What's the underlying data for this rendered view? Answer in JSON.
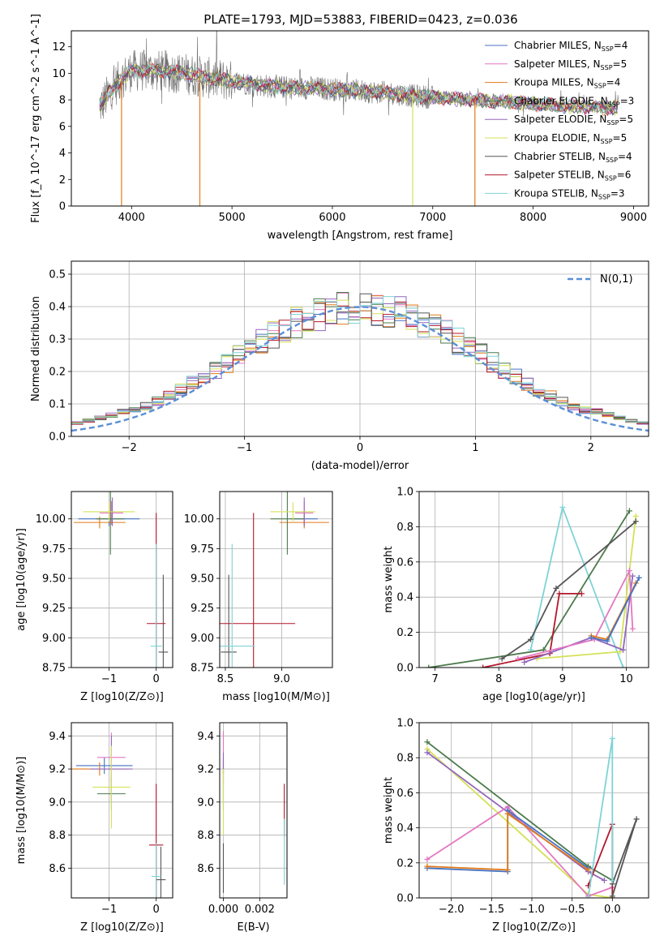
{
  "figure": {
    "title": "PLATE=1793, MJD=53883, FIBERID=0423, z=0.036"
  },
  "series_styles": [
    {
      "name": "Chabrier MILES",
      "nssp": "4",
      "color": "#4472c4"
    },
    {
      "name": "Salpeter MILES",
      "nssp": "5",
      "color": "#e377c2"
    },
    {
      "name": "Kroupa MILES",
      "nssp": "4",
      "color": "#e07b1a"
    },
    {
      "name": "Chabrier ELODIE",
      "nssp": "3",
      "color": "#4c7a4c"
    },
    {
      "name": "Salpeter ELODIE",
      "nssp": "5",
      "color": "#9467bd"
    },
    {
      "name": "Kroupa ELODIE",
      "nssp": "5",
      "color": "#d4e157"
    },
    {
      "name": "Chabrier STELIB",
      "nssp": "4",
      "color": "#555555"
    },
    {
      "name": "Salpeter STELIB",
      "nssp": "6",
      "color": "#b2182b"
    },
    {
      "name": "Kroupa STELIB",
      "nssp": "3",
      "color": "#7fd3d6"
    }
  ],
  "chart_data": [
    {
      "id": "spectrum",
      "type": "line",
      "title": "PLATE=1793, MJD=53883, FIBERID=0423, z=0.036",
      "xlabel": "wavelength [Angstrom, rest frame]",
      "ylabel": "Flux [f_λ 10^-17 erg cm^-2 s^-1 A^-1]",
      "xlim": [
        3400,
        9150
      ],
      "ylim": [
        0,
        13.2
      ],
      "xticks": [
        4000,
        5000,
        6000,
        7000,
        8000,
        9000
      ],
      "yticks": [
        0,
        2,
        4,
        6,
        8,
        10,
        12
      ],
      "grid": false,
      "legend": "top-right",
      "legend_entries": [
        "Chabrier MILES, N_SSP=4",
        "Salpeter MILES, N_SSP=5",
        "Kroupa MILES, N_SSP=4",
        "Chabrier ELODIE, N_SSP=3",
        "Salpeter ELODIE, N_SSP=5",
        "Kroupa ELODIE, N_SSP=5",
        "Chabrier STELIB, N_SSP=4",
        "Salpeter STELIB, N_SSP=6",
        "Kroupa STELIB, N_SSP=3"
      ],
      "continuum": {
        "x": [
          3700,
          3800,
          3900,
          4000,
          4200,
          4400,
          4600,
          4800,
          5000,
          5200,
          5400,
          5600,
          5800,
          6000,
          6200,
          6400,
          6600,
          6800,
          7000,
          7200,
          7400,
          7600,
          7800,
          8000,
          8200,
          8400,
          8600,
          8800
        ],
        "y": [
          7.6,
          8.8,
          9.6,
          10.2,
          10.2,
          10.1,
          9.9,
          9.6,
          9.4,
          9.2,
          9.0,
          8.9,
          8.9,
          8.8,
          8.7,
          8.6,
          8.5,
          8.3,
          8.2,
          8.1,
          8.0,
          7.9,
          7.85,
          7.7,
          7.6,
          7.5,
          7.45,
          7.4
        ]
      },
      "noisy_range": [
        3680,
        8850
      ],
      "dips": [
        {
          "x": 3900,
          "y": 0,
          "color": "#e07b1a"
        },
        {
          "x": 4680,
          "y": 0,
          "color": "#e07b1a"
        },
        {
          "x": 6800,
          "y": 0,
          "color": "#d4e157"
        },
        {
          "x": 7420,
          "y": 0,
          "color": "#e07b1a"
        }
      ]
    },
    {
      "id": "residuals",
      "type": "histogram",
      "xlabel": "(data-model)/error",
      "ylabel": "Normed distribution",
      "xlim": [
        -2.5,
        2.5
      ],
      "ylim": [
        0,
        0.54
      ],
      "xticks": [
        -2,
        -1,
        0,
        1,
        2
      ],
      "yticks": [
        0.0,
        0.1,
        0.2,
        0.3,
        0.4,
        0.5
      ],
      "grid": true,
      "legend": "top-right",
      "reference_curve": {
        "name": "N(0,1)",
        "color": "#5b8fd6",
        "style": "dashed"
      },
      "bin_width": 0.1
    },
    {
      "id": "age_vs_Z",
      "type": "scatter",
      "xlabel": "Z [log10(Z/Z⊙)]",
      "ylabel": "age  [log10(age/yr)]",
      "xlim": [
        -1.8,
        0.35
      ],
      "ylim": [
        8.75,
        10.23
      ],
      "xticks": [
        -1,
        0
      ],
      "yticks": [
        8.75,
        9.0,
        9.25,
        9.5,
        9.75,
        10.0
      ],
      "grid": true,
      "points": [
        {
          "s": 0,
          "x": -1.0,
          "y": 10.0,
          "xerr": 0.65,
          "yerr": 0.06
        },
        {
          "s": 1,
          "x": -0.95,
          "y": 10.05,
          "xerr": 0.25,
          "yerr": 0.1
        },
        {
          "s": 2,
          "x": -1.2,
          "y": 9.97,
          "xerr": 0.55,
          "yerr": 0.05
        },
        {
          "s": 3,
          "x": -0.97,
          "y": 10.0,
          "xerr": 0.3,
          "yerr": 0.3
        },
        {
          "s": 4,
          "x": -0.93,
          "y": 10.06,
          "xerr": 0.05,
          "yerr": 0.12
        },
        {
          "s": 5,
          "x": -1.0,
          "y": 10.06,
          "xerr": 0.55,
          "yerr": 0.08
        },
        {
          "s": 6,
          "x": 0.15,
          "y": 8.88,
          "xerr": 0.1,
          "yerr": 0.65
        },
        {
          "s": 7,
          "x": 0.0,
          "y": 9.12,
          "xerr": 0.2,
          "yerr": 0.93
        },
        {
          "s": 8,
          "x": 0.0,
          "y": 8.93,
          "xerr": 0.12,
          "yerr": 0.86
        }
      ]
    },
    {
      "id": "age_vs_mass",
      "type": "scatter",
      "xlabel": "mass [log10(M/M⊙)]",
      "ylabel": "",
      "xlim": [
        8.45,
        9.45
      ],
      "ylim": [
        8.75,
        10.23
      ],
      "xticks": [
        8.5,
        9.0
      ],
      "yticks": [
        8.75,
        9.0,
        9.25,
        9.5,
        9.75,
        10.0
      ],
      "grid": true,
      "points": [
        {
          "s": 0,
          "x": 9.2,
          "y": 10.0,
          "xerr": 0.12,
          "yerr": 0.06
        },
        {
          "s": 1,
          "x": 9.2,
          "y": 10.05,
          "xerr": 0.08,
          "yerr": 0.1
        },
        {
          "s": 2,
          "x": 9.2,
          "y": 9.97,
          "xerr": 0.22,
          "yerr": 0.05
        },
        {
          "s": 3,
          "x": 9.05,
          "y": 10.0,
          "xerr": 0.15,
          "yerr": 0.3
        },
        {
          "s": 4,
          "x": 9.2,
          "y": 10.06,
          "xerr": 0.02,
          "yerr": 0.12
        },
        {
          "s": 5,
          "x": 9.1,
          "y": 10.06,
          "xerr": 0.2,
          "yerr": 0.08
        },
        {
          "s": 6,
          "x": 8.53,
          "y": 8.88,
          "xerr": 0.07,
          "yerr": 0.65
        },
        {
          "s": 7,
          "x": 8.75,
          "y": 9.12,
          "xerr": 0.37,
          "yerr": 0.93
        },
        {
          "s": 8,
          "x": 8.56,
          "y": 8.93,
          "xerr": 0.2,
          "yerr": 0.86
        }
      ]
    },
    {
      "id": "weight_vs_age",
      "type": "line",
      "xlabel": "age  [log10(age/yr)]",
      "ylabel": "mass weight",
      "xlim": [
        6.75,
        10.35
      ],
      "ylim": [
        0,
        1.0
      ],
      "xticks": [
        7,
        8,
        9,
        10
      ],
      "yticks": [
        0.0,
        0.2,
        0.4,
        0.6,
        0.8,
        1.0
      ],
      "grid": true,
      "series": [
        {
          "s": 8,
          "x": [
            8.5,
            9.0,
            9.95
          ],
          "y": [
            0.1,
            0.91,
            0.0
          ]
        },
        {
          "s": 3,
          "x": [
            6.9,
            8.7,
            10.05
          ],
          "y": [
            0.0,
            0.1,
            0.89
          ]
        },
        {
          "s": 5,
          "x": [
            8.6,
            9.9,
            10.15
          ],
          "y": [
            0.05,
            0.09,
            0.86
          ]
        },
        {
          "s": 6,
          "x": [
            8.05,
            8.5,
            8.9,
            10.15
          ],
          "y": [
            0.05,
            0.16,
            0.45,
            0.83
          ]
        },
        {
          "s": 7,
          "x": [
            7.75,
            8.8,
            8.95,
            9.3
          ],
          "y": [
            0.0,
            0.08,
            0.42,
            0.42
          ]
        },
        {
          "s": 4,
          "x": [
            8.4,
            9.45,
            9.95,
            10.1
          ],
          "y": [
            0.03,
            0.17,
            0.1,
            0.52
          ]
        },
        {
          "s": 1,
          "x": [
            8.3,
            9.5,
            10.05,
            10.1
          ],
          "y": [
            0.05,
            0.16,
            0.55,
            0.22
          ]
        },
        {
          "s": 2,
          "x": [
            9.45,
            9.7,
            10.15
          ],
          "y": [
            0.18,
            0.16,
            0.48
          ]
        },
        {
          "s": 0,
          "x": [
            9.45,
            9.7,
            10.2
          ],
          "y": [
            0.17,
            0.15,
            0.51
          ]
        }
      ]
    },
    {
      "id": "mass_vs_Z",
      "type": "scatter",
      "xlabel": "Z [log10(Z/Z⊙)]",
      "ylabel": "mass [log10(M/M⊙)]",
      "xlim": [
        -1.8,
        0.35
      ],
      "ylim": [
        8.42,
        9.48
      ],
      "xticks": [
        -1,
        0
      ],
      "yticks": [
        8.6,
        8.8,
        9.0,
        9.2,
        9.4
      ],
      "grid": true,
      "points": [
        {
          "s": 0,
          "x": -1.1,
          "y": 9.22,
          "xerr": 0.6,
          "yerr": 0.05
        },
        {
          "s": 1,
          "x": -0.95,
          "y": 9.27,
          "xerr": 0.3,
          "yerr": 0.15
        },
        {
          "s": 2,
          "x": -1.2,
          "y": 9.2,
          "xerr": 0.6,
          "yerr": 0.04
        },
        {
          "s": 3,
          "x": -0.95,
          "y": 9.05,
          "xerr": 0.3,
          "yerr": 0.1
        },
        {
          "s": 4,
          "x": -0.95,
          "y": 9.2,
          "xerr": 0.45,
          "yerr": 0.2
        },
        {
          "s": 5,
          "x": -0.95,
          "y": 9.09,
          "xerr": 0.4,
          "yerr": 0.25
        },
        {
          "s": 6,
          "x": 0.1,
          "y": 8.53,
          "xerr": 0.1,
          "yerr": 0.2
        },
        {
          "s": 7,
          "x": 0.0,
          "y": 8.74,
          "xerr": 0.15,
          "yerr": 0.37
        },
        {
          "s": 8,
          "x": 0.0,
          "y": 8.55,
          "xerr": 0.1,
          "yerr": 0.2
        }
      ]
    },
    {
      "id": "mass_vs_EBV",
      "type": "scatter",
      "xlabel": "E(B-V)",
      "ylabel": "",
      "xlim": [
        -0.0002,
        0.0035
      ],
      "ylim": [
        8.42,
        9.48
      ],
      "xticks": [
        0.0,
        0.002
      ],
      "yticks": [
        8.6,
        8.8,
        9.0,
        9.2,
        9.4
      ],
      "grid": true,
      "points": [
        {
          "s": 0,
          "x": 0.0,
          "y": 9.22,
          "xerr": 0,
          "yerr": 0.05
        },
        {
          "s": 1,
          "x": 0.0,
          "y": 9.3,
          "xerr": 0,
          "yerr": 0.13
        },
        {
          "s": 2,
          "x": 0.0,
          "y": 9.2,
          "xerr": 0,
          "yerr": 0.04
        },
        {
          "s": 3,
          "x": 0.0,
          "y": 9.05,
          "xerr": 0,
          "yerr": 0.1
        },
        {
          "s": 4,
          "x": 0.0,
          "y": 9.2,
          "xerr": 0,
          "yerr": 0.1
        },
        {
          "s": 5,
          "x": 0.0,
          "y": 9.0,
          "xerr": 0,
          "yerr": 0.2
        },
        {
          "s": 6,
          "x": 0.0,
          "y": 8.6,
          "xerr": 0,
          "yerr": 0.15
        },
        {
          "s": 7,
          "x": 0.00335,
          "y": 8.95,
          "xerr": 0,
          "yerr": 0.16
        },
        {
          "s": 8,
          "x": 0.00335,
          "y": 8.7,
          "xerr": 0,
          "yerr": 0.2
        }
      ]
    },
    {
      "id": "weight_vs_Z",
      "type": "line",
      "xlabel": "Z [log10(Z/Z⊙)]",
      "ylabel": "mass weight",
      "xlim": [
        -2.4,
        0.45
      ],
      "ylim": [
        0,
        1.0
      ],
      "xticks": [
        -2.0,
        -1.5,
        -1.0,
        -0.5,
        0.0
      ],
      "yticks": [
        0.0,
        0.2,
        0.4,
        0.6,
        0.8,
        1.0
      ],
      "grid": true,
      "series": [
        {
          "s": 3,
          "x": [
            -2.3,
            -0.3,
            0.0
          ],
          "y": [
            0.89,
            0.18,
            0.1
          ]
        },
        {
          "s": 5,
          "x": [
            -2.3,
            -0.3,
            0.0
          ],
          "y": [
            0.85,
            0.02,
            0.0
          ]
        },
        {
          "s": 4,
          "x": [
            -2.3,
            -0.3,
            -0.1
          ],
          "y": [
            0.83,
            0.15,
            0.1
          ]
        },
        {
          "s": 1,
          "x": [
            -2.3,
            -1.3,
            -0.3,
            0.0
          ],
          "y": [
            0.22,
            0.52,
            0.01,
            0.06
          ]
        },
        {
          "s": 0,
          "x": [
            -2.3,
            -1.3,
            -1.3,
            -0.3
          ],
          "y": [
            0.17,
            0.15,
            0.5,
            0.17
          ]
        },
        {
          "s": 2,
          "x": [
            -2.3,
            -1.3,
            -1.3,
            -0.3
          ],
          "y": [
            0.18,
            0.16,
            0.48,
            0.16
          ]
        },
        {
          "s": 7,
          "x": [
            -0.3,
            0.0,
            0.0
          ],
          "y": [
            0.07,
            0.42,
            0.0
          ]
        },
        {
          "s": 6,
          "x": [
            0.0,
            0.3,
            0.0
          ],
          "y": [
            0.01,
            0.45,
            0.08
          ]
        },
        {
          "s": 8,
          "x": [
            -0.3,
            0.0,
            0.0
          ],
          "y": [
            0.0,
            0.91,
            0.1
          ]
        }
      ]
    }
  ],
  "panel_text": {
    "spectrum_title": "PLATE=1793, MJD=53883, FIBERID=0423, z=0.036",
    "residuals_legend": "N(0,1)"
  }
}
